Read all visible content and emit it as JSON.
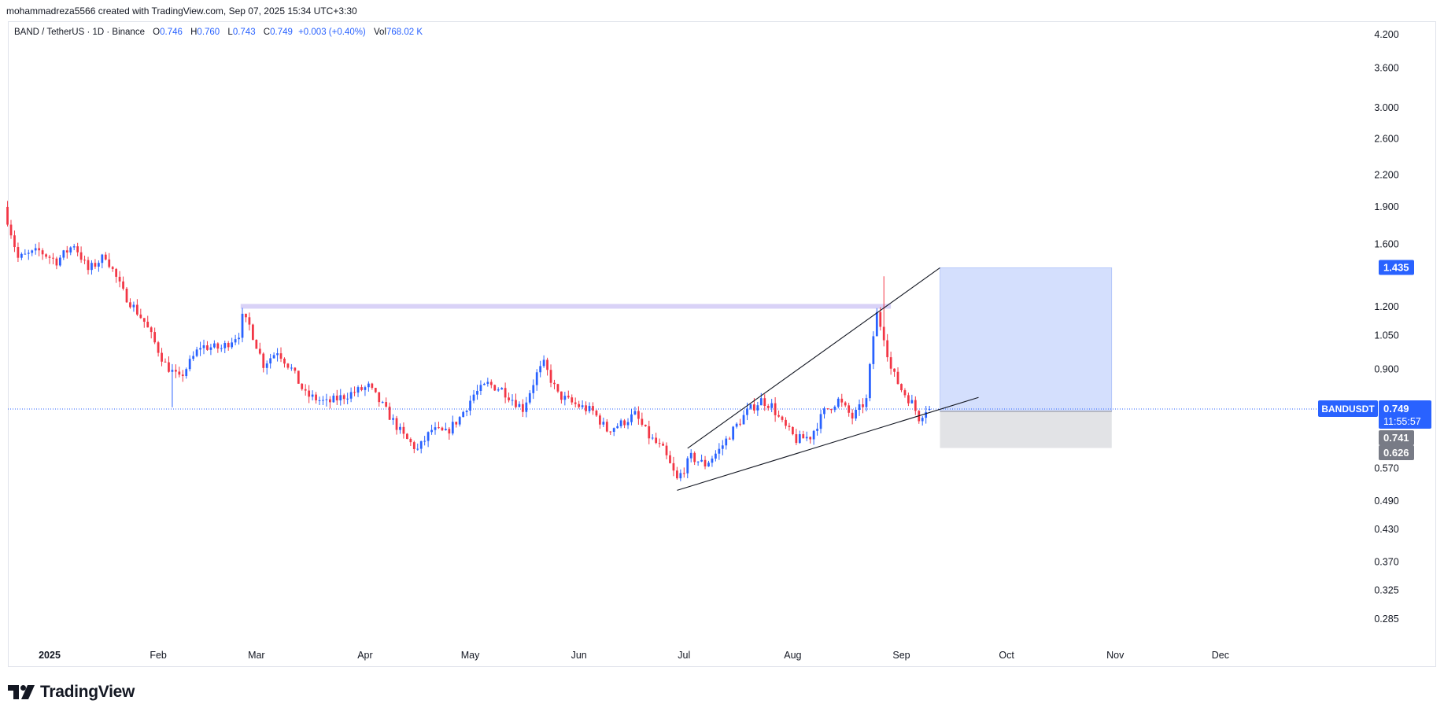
{
  "credit": "mohammadreza5566 created with TradingView.com, Sep 07, 2025 15:34 UTC+3:30",
  "legend": {
    "symbol": "BAND / TetherUS · 1D · Binance",
    "open_label": "O",
    "open": "0.746",
    "high_label": "H",
    "high": "0.760",
    "low_label": "L",
    "low": "0.743",
    "close_label": "C",
    "close": "0.749",
    "change": "+0.003 (+0.40%)",
    "vol_label": "Vol",
    "vol": "768.02 K"
  },
  "brand": "TradingView",
  "colors": {
    "up": "#2962ff",
    "down": "#f23645",
    "accent": "#2962ff",
    "band": "#d9d2f7",
    "profit_zone": "#cfdcfd",
    "stop_zone": "#e0e1e5"
  },
  "chart_data": {
    "type": "candlestick",
    "scale": "logarithmic",
    "ylim": [
      0.262,
      4.45
    ],
    "y_ticks": [
      "4.200",
      "3.600",
      "3.000",
      "2.600",
      "2.200",
      "1.900",
      "1.600",
      "1.200",
      "1.050",
      "0.900",
      "0.570",
      "0.490",
      "0.430",
      "0.370",
      "0.325",
      "0.285"
    ],
    "x_ticks": [
      {
        "label": "2025",
        "day": 0,
        "bold": true
      },
      {
        "label": "Feb",
        "day": 31
      },
      {
        "label": "Mar",
        "day": 59
      },
      {
        "label": "Apr",
        "day": 90
      },
      {
        "label": "May",
        "day": 120
      },
      {
        "label": "Jun",
        "day": 151
      },
      {
        "label": "Jul",
        "day": 181
      },
      {
        "label": "Aug",
        "day": 212
      },
      {
        "label": "Sep",
        "day": 243
      },
      {
        "label": "Oct",
        "day": 273
      },
      {
        "label": "Nov",
        "day": 304
      },
      {
        "label": "Dec",
        "day": 334
      }
    ],
    "x_range_days": [
      -11.9,
      358.5
    ],
    "anchors": [
      [
        -12,
        1.9
      ],
      [
        -8,
        1.5
      ],
      [
        -2,
        1.55
      ],
      [
        3,
        1.48
      ],
      [
        8,
        1.6
      ],
      [
        12,
        1.42
      ],
      [
        17,
        1.52
      ],
      [
        22,
        1.28
      ],
      [
        28,
        1.12
      ],
      [
        34,
        0.92
      ],
      [
        38,
        0.86
      ],
      [
        44,
        1.0
      ],
      [
        50,
        0.99
      ],
      [
        55,
        1.06
      ],
      [
        56,
        1.14
      ],
      [
        58,
        1.1
      ],
      [
        62,
        0.92
      ],
      [
        66,
        0.98
      ],
      [
        70,
        0.9
      ],
      [
        74,
        0.8
      ],
      [
        80,
        0.77
      ],
      [
        86,
        0.8
      ],
      [
        92,
        0.83
      ],
      [
        96,
        0.76
      ],
      [
        102,
        0.66
      ],
      [
        106,
        0.62
      ],
      [
        110,
        0.68
      ],
      [
        114,
        0.67
      ],
      [
        118,
        0.72
      ],
      [
        122,
        0.8
      ],
      [
        126,
        0.84
      ],
      [
        130,
        0.82
      ],
      [
        136,
        0.75
      ],
      [
        140,
        0.88
      ],
      [
        142,
        0.92
      ],
      [
        146,
        0.8
      ],
      [
        150,
        0.77
      ],
      [
        156,
        0.74
      ],
      [
        160,
        0.68
      ],
      [
        164,
        0.7
      ],
      [
        168,
        0.73
      ],
      [
        172,
        0.66
      ],
      [
        176,
        0.62
      ],
      [
        180,
        0.54
      ],
      [
        184,
        0.6
      ],
      [
        188,
        0.58
      ],
      [
        192,
        0.62
      ],
      [
        196,
        0.68
      ],
      [
        200,
        0.74
      ],
      [
        204,
        0.78
      ],
      [
        207,
        0.76
      ],
      [
        210,
        0.7
      ],
      [
        214,
        0.65
      ],
      [
        218,
        0.66
      ],
      [
        222,
        0.74
      ],
      [
        226,
        0.78
      ],
      [
        230,
        0.72
      ],
      [
        234,
        0.78
      ],
      [
        236,
        1.05
      ],
      [
        237,
        1.16
      ],
      [
        239,
        1.05
      ],
      [
        241,
        0.9
      ],
      [
        244,
        0.82
      ],
      [
        247,
        0.77
      ],
      [
        249,
        0.72
      ],
      [
        251,
        0.749
      ]
    ],
    "special_wicks": [
      {
        "day": 35,
        "low": 0.755
      },
      {
        "day": 238,
        "high": 1.38
      }
    ],
    "last": {
      "day": 251,
      "open": 0.746,
      "high": 0.76,
      "low": 0.743,
      "close": 0.749
    },
    "horizontal_band": {
      "day_start": 54.5,
      "day_end": 240,
      "low": 1.19,
      "high": 1.215
    },
    "trendlines": [
      {
        "points": [
          [
            179,
            0.515
          ],
          [
            265,
            0.79
          ]
        ]
      },
      {
        "points": [
          [
            182,
            0.625
          ],
          [
            254,
            1.435
          ]
        ]
      }
    ],
    "position": {
      "day_start": 254,
      "day_end": 303,
      "entry": 0.741,
      "target": 1.435,
      "stop": 0.626
    },
    "last_price_line": 0.749,
    "price_labels": [
      {
        "text": "1.435",
        "value": 1.435,
        "kind": "target"
      },
      {
        "text": "0.749",
        "value": 0.749,
        "kind": "current",
        "symbol": "BANDUSDT",
        "countdown": "11:55:57"
      },
      {
        "text": "0.741",
        "value": 0.741,
        "kind": "entry"
      },
      {
        "text": "0.626",
        "value": 0.626,
        "kind": "stop"
      }
    ]
  }
}
